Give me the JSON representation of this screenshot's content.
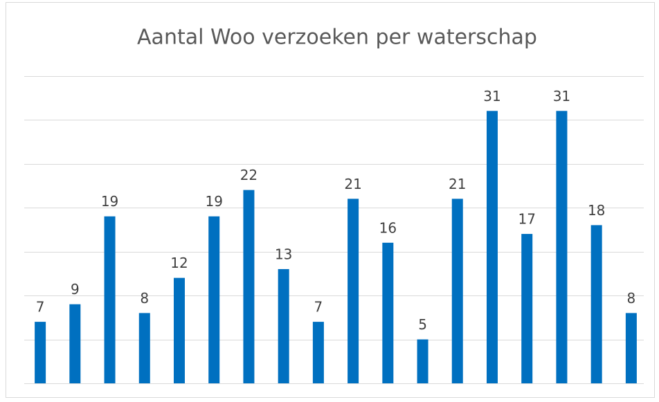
{
  "chart_data": {
    "type": "bar",
    "title": "Aantal Woo verzoeken per waterschap",
    "categories": [
      null,
      null,
      null,
      null,
      null,
      null,
      null,
      null,
      null,
      null,
      null,
      null,
      null,
      null,
      null,
      null,
      null,
      null
    ],
    "values": [
      7,
      9,
      19,
      8,
      12,
      19,
      22,
      13,
      7,
      21,
      16,
      5,
      21,
      31,
      17,
      31,
      18,
      8
    ],
    "color": "#0070c0",
    "ylim": [
      0,
      35
    ],
    "yticks": [
      0,
      5,
      10,
      15,
      20,
      25,
      30,
      35
    ],
    "grid": true
  }
}
